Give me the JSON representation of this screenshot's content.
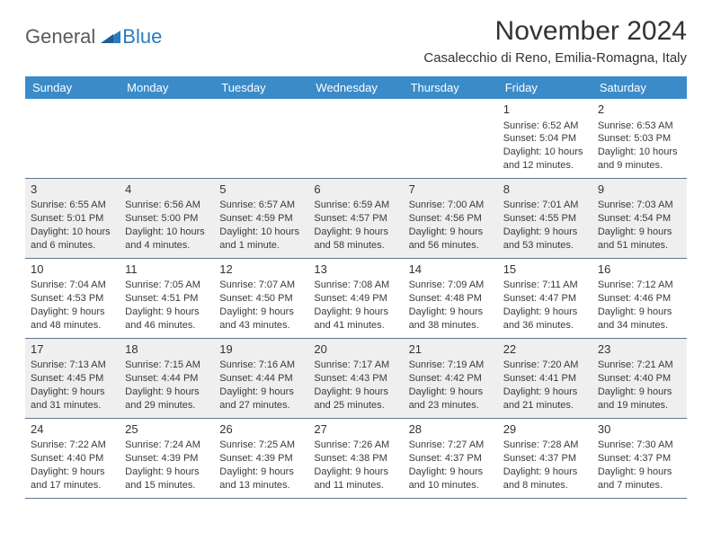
{
  "logo": {
    "general": "General",
    "blue": "Blue"
  },
  "title": "November 2024",
  "location": "Casalecchio di Reno, Emilia-Romagna, Italy",
  "colors": {
    "header_bg": "#3b8bc9",
    "header_fg": "#ffffff",
    "alt_row_bg": "#efefef",
    "rule": "#5a7a95",
    "logo_blue": "#2a7bbf",
    "logo_gray": "#5a5a5a",
    "text": "#333333"
  },
  "day_names": [
    "Sunday",
    "Monday",
    "Tuesday",
    "Wednesday",
    "Thursday",
    "Friday",
    "Saturday"
  ],
  "weeks": [
    [
      null,
      null,
      null,
      null,
      null,
      {
        "n": "1",
        "sr": "Sunrise: 6:52 AM",
        "ss": "Sunset: 5:04 PM",
        "d1": "Daylight: 10 hours",
        "d2": "and 12 minutes."
      },
      {
        "n": "2",
        "sr": "Sunrise: 6:53 AM",
        "ss": "Sunset: 5:03 PM",
        "d1": "Daylight: 10 hours",
        "d2": "and 9 minutes."
      }
    ],
    [
      {
        "n": "3",
        "sr": "Sunrise: 6:55 AM",
        "ss": "Sunset: 5:01 PM",
        "d1": "Daylight: 10 hours",
        "d2": "and 6 minutes."
      },
      {
        "n": "4",
        "sr": "Sunrise: 6:56 AM",
        "ss": "Sunset: 5:00 PM",
        "d1": "Daylight: 10 hours",
        "d2": "and 4 minutes."
      },
      {
        "n": "5",
        "sr": "Sunrise: 6:57 AM",
        "ss": "Sunset: 4:59 PM",
        "d1": "Daylight: 10 hours",
        "d2": "and 1 minute."
      },
      {
        "n": "6",
        "sr": "Sunrise: 6:59 AM",
        "ss": "Sunset: 4:57 PM",
        "d1": "Daylight: 9 hours",
        "d2": "and 58 minutes."
      },
      {
        "n": "7",
        "sr": "Sunrise: 7:00 AM",
        "ss": "Sunset: 4:56 PM",
        "d1": "Daylight: 9 hours",
        "d2": "and 56 minutes."
      },
      {
        "n": "8",
        "sr": "Sunrise: 7:01 AM",
        "ss": "Sunset: 4:55 PM",
        "d1": "Daylight: 9 hours",
        "d2": "and 53 minutes."
      },
      {
        "n": "9",
        "sr": "Sunrise: 7:03 AM",
        "ss": "Sunset: 4:54 PM",
        "d1": "Daylight: 9 hours",
        "d2": "and 51 minutes."
      }
    ],
    [
      {
        "n": "10",
        "sr": "Sunrise: 7:04 AM",
        "ss": "Sunset: 4:53 PM",
        "d1": "Daylight: 9 hours",
        "d2": "and 48 minutes."
      },
      {
        "n": "11",
        "sr": "Sunrise: 7:05 AM",
        "ss": "Sunset: 4:51 PM",
        "d1": "Daylight: 9 hours",
        "d2": "and 46 minutes."
      },
      {
        "n": "12",
        "sr": "Sunrise: 7:07 AM",
        "ss": "Sunset: 4:50 PM",
        "d1": "Daylight: 9 hours",
        "d2": "and 43 minutes."
      },
      {
        "n": "13",
        "sr": "Sunrise: 7:08 AM",
        "ss": "Sunset: 4:49 PM",
        "d1": "Daylight: 9 hours",
        "d2": "and 41 minutes."
      },
      {
        "n": "14",
        "sr": "Sunrise: 7:09 AM",
        "ss": "Sunset: 4:48 PM",
        "d1": "Daylight: 9 hours",
        "d2": "and 38 minutes."
      },
      {
        "n": "15",
        "sr": "Sunrise: 7:11 AM",
        "ss": "Sunset: 4:47 PM",
        "d1": "Daylight: 9 hours",
        "d2": "and 36 minutes."
      },
      {
        "n": "16",
        "sr": "Sunrise: 7:12 AM",
        "ss": "Sunset: 4:46 PM",
        "d1": "Daylight: 9 hours",
        "d2": "and 34 minutes."
      }
    ],
    [
      {
        "n": "17",
        "sr": "Sunrise: 7:13 AM",
        "ss": "Sunset: 4:45 PM",
        "d1": "Daylight: 9 hours",
        "d2": "and 31 minutes."
      },
      {
        "n": "18",
        "sr": "Sunrise: 7:15 AM",
        "ss": "Sunset: 4:44 PM",
        "d1": "Daylight: 9 hours",
        "d2": "and 29 minutes."
      },
      {
        "n": "19",
        "sr": "Sunrise: 7:16 AM",
        "ss": "Sunset: 4:44 PM",
        "d1": "Daylight: 9 hours",
        "d2": "and 27 minutes."
      },
      {
        "n": "20",
        "sr": "Sunrise: 7:17 AM",
        "ss": "Sunset: 4:43 PM",
        "d1": "Daylight: 9 hours",
        "d2": "and 25 minutes."
      },
      {
        "n": "21",
        "sr": "Sunrise: 7:19 AM",
        "ss": "Sunset: 4:42 PM",
        "d1": "Daylight: 9 hours",
        "d2": "and 23 minutes."
      },
      {
        "n": "22",
        "sr": "Sunrise: 7:20 AM",
        "ss": "Sunset: 4:41 PM",
        "d1": "Daylight: 9 hours",
        "d2": "and 21 minutes."
      },
      {
        "n": "23",
        "sr": "Sunrise: 7:21 AM",
        "ss": "Sunset: 4:40 PM",
        "d1": "Daylight: 9 hours",
        "d2": "and 19 minutes."
      }
    ],
    [
      {
        "n": "24",
        "sr": "Sunrise: 7:22 AM",
        "ss": "Sunset: 4:40 PM",
        "d1": "Daylight: 9 hours",
        "d2": "and 17 minutes."
      },
      {
        "n": "25",
        "sr": "Sunrise: 7:24 AM",
        "ss": "Sunset: 4:39 PM",
        "d1": "Daylight: 9 hours",
        "d2": "and 15 minutes."
      },
      {
        "n": "26",
        "sr": "Sunrise: 7:25 AM",
        "ss": "Sunset: 4:39 PM",
        "d1": "Daylight: 9 hours",
        "d2": "and 13 minutes."
      },
      {
        "n": "27",
        "sr": "Sunrise: 7:26 AM",
        "ss": "Sunset: 4:38 PM",
        "d1": "Daylight: 9 hours",
        "d2": "and 11 minutes."
      },
      {
        "n": "28",
        "sr": "Sunrise: 7:27 AM",
        "ss": "Sunset: 4:37 PM",
        "d1": "Daylight: 9 hours",
        "d2": "and 10 minutes."
      },
      {
        "n": "29",
        "sr": "Sunrise: 7:28 AM",
        "ss": "Sunset: 4:37 PM",
        "d1": "Daylight: 9 hours",
        "d2": "and 8 minutes."
      },
      {
        "n": "30",
        "sr": "Sunrise: 7:30 AM",
        "ss": "Sunset: 4:37 PM",
        "d1": "Daylight: 9 hours",
        "d2": "and 7 minutes."
      }
    ]
  ]
}
